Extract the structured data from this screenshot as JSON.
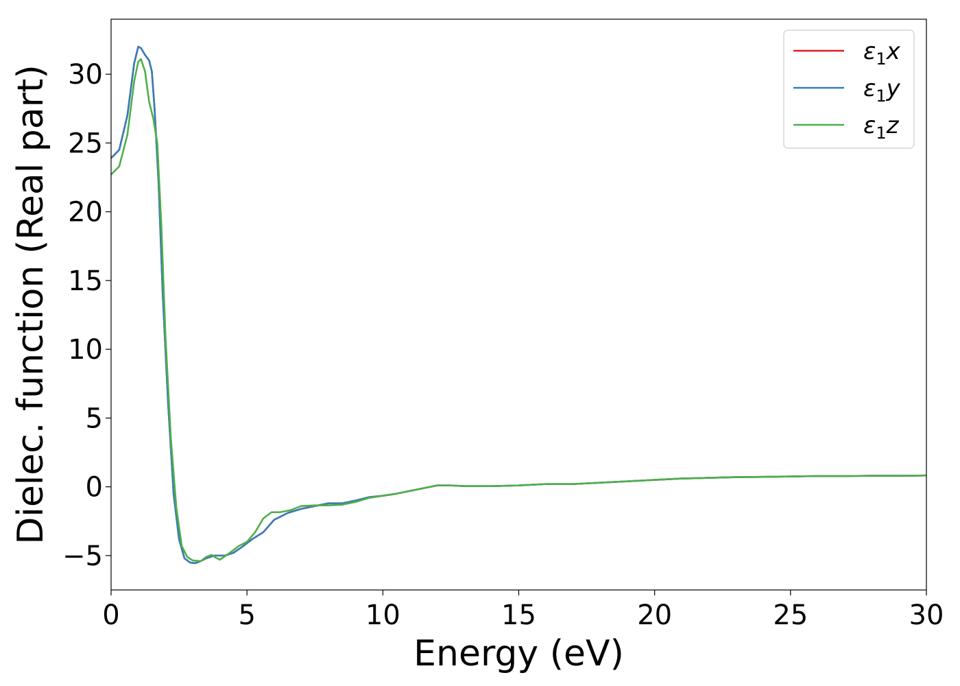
{
  "chart_data": {
    "type": "line",
    "title": "",
    "xlabel": "Energy (eV)",
    "ylabel": "Dielec. function (Real part)",
    "xlim": [
      0,
      30
    ],
    "ylim": [
      -7.5,
      34
    ],
    "xticks": [
      0,
      5,
      10,
      15,
      20,
      25,
      30
    ],
    "yticks": [
      -5,
      0,
      5,
      10,
      15,
      20,
      25,
      30
    ],
    "xtick_labels": [
      "0",
      "5",
      "10",
      "15",
      "20",
      "25",
      "30"
    ],
    "ytick_labels": [
      "−5",
      "0",
      "5",
      "10",
      "15",
      "20",
      "25",
      "30"
    ],
    "grid": false,
    "legend_position": "top-right",
    "series": [
      {
        "name": "ε₁x",
        "legend_main": "ε",
        "legend_sub": "1",
        "legend_tail": "x",
        "color": "#e41a1c",
        "points": [
          [
            0,
            23.9
          ],
          [
            0.3,
            24.5
          ],
          [
            0.6,
            27.0
          ],
          [
            0.85,
            30.8
          ],
          [
            1.0,
            32.0
          ],
          [
            1.1,
            31.9
          ],
          [
            1.25,
            31.4
          ],
          [
            1.4,
            31.0
          ],
          [
            1.5,
            30.2
          ],
          [
            1.6,
            27.5
          ],
          [
            1.75,
            22.0
          ],
          [
            1.9,
            14.0
          ],
          [
            2.1,
            6.0
          ],
          [
            2.3,
            -0.5
          ],
          [
            2.5,
            -3.8
          ],
          [
            2.7,
            -5.2
          ],
          [
            2.9,
            -5.5
          ],
          [
            3.1,
            -5.55
          ],
          [
            3.3,
            -5.4
          ],
          [
            3.5,
            -5.2
          ],
          [
            3.8,
            -5.0
          ],
          [
            4.2,
            -5.0
          ],
          [
            4.5,
            -4.8
          ],
          [
            4.8,
            -4.4
          ],
          [
            5.2,
            -3.8
          ],
          [
            5.6,
            -3.3
          ],
          [
            6.0,
            -2.4
          ],
          [
            6.5,
            -1.9
          ],
          [
            7.0,
            -1.6
          ],
          [
            7.5,
            -1.4
          ],
          [
            8.0,
            -1.2
          ],
          [
            8.5,
            -1.2
          ],
          [
            9.0,
            -1.0
          ],
          [
            9.5,
            -0.75
          ],
          [
            10.0,
            -0.65
          ],
          [
            10.5,
            -0.5
          ],
          [
            11.0,
            -0.3
          ],
          [
            11.5,
            -0.1
          ],
          [
            12.0,
            0.1
          ],
          [
            12.5,
            0.1
          ],
          [
            13.0,
            0.05
          ],
          [
            14.0,
            0.05
          ],
          [
            15.0,
            0.1
          ],
          [
            16.0,
            0.2
          ],
          [
            17.0,
            0.2
          ],
          [
            18.0,
            0.3
          ],
          [
            19.0,
            0.4
          ],
          [
            20.0,
            0.5
          ],
          [
            21.0,
            0.6
          ],
          [
            22.0,
            0.65
          ],
          [
            23.0,
            0.7
          ],
          [
            24.0,
            0.72
          ],
          [
            25.0,
            0.75
          ],
          [
            26.0,
            0.78
          ],
          [
            27.0,
            0.78
          ],
          [
            28.0,
            0.8
          ],
          [
            29.0,
            0.8
          ],
          [
            30.0,
            0.82
          ]
        ]
      },
      {
        "name": "ε₁y",
        "legend_main": "ε",
        "legend_sub": "1",
        "legend_tail": "y",
        "color": "#377eb8",
        "points": [
          [
            0,
            23.9
          ],
          [
            0.3,
            24.5
          ],
          [
            0.6,
            27.0
          ],
          [
            0.85,
            30.8
          ],
          [
            1.0,
            32.0
          ],
          [
            1.1,
            31.9
          ],
          [
            1.25,
            31.4
          ],
          [
            1.4,
            31.0
          ],
          [
            1.5,
            30.2
          ],
          [
            1.6,
            27.5
          ],
          [
            1.75,
            22.0
          ],
          [
            1.9,
            14.0
          ],
          [
            2.1,
            6.0
          ],
          [
            2.3,
            -0.5
          ],
          [
            2.5,
            -3.8
          ],
          [
            2.7,
            -5.2
          ],
          [
            2.9,
            -5.5
          ],
          [
            3.1,
            -5.55
          ],
          [
            3.3,
            -5.4
          ],
          [
            3.5,
            -5.2
          ],
          [
            3.8,
            -5.0
          ],
          [
            4.2,
            -5.0
          ],
          [
            4.5,
            -4.8
          ],
          [
            4.8,
            -4.4
          ],
          [
            5.2,
            -3.8
          ],
          [
            5.6,
            -3.3
          ],
          [
            6.0,
            -2.4
          ],
          [
            6.5,
            -1.9
          ],
          [
            7.0,
            -1.6
          ],
          [
            7.5,
            -1.4
          ],
          [
            8.0,
            -1.2
          ],
          [
            8.5,
            -1.2
          ],
          [
            9.0,
            -1.0
          ],
          [
            9.5,
            -0.75
          ],
          [
            10.0,
            -0.65
          ],
          [
            10.5,
            -0.5
          ],
          [
            11.0,
            -0.3
          ],
          [
            11.5,
            -0.1
          ],
          [
            12.0,
            0.1
          ],
          [
            12.5,
            0.1
          ],
          [
            13.0,
            0.05
          ],
          [
            14.0,
            0.05
          ],
          [
            15.0,
            0.1
          ],
          [
            16.0,
            0.2
          ],
          [
            17.0,
            0.2
          ],
          [
            18.0,
            0.3
          ],
          [
            19.0,
            0.4
          ],
          [
            20.0,
            0.5
          ],
          [
            21.0,
            0.6
          ],
          [
            22.0,
            0.65
          ],
          [
            23.0,
            0.7
          ],
          [
            24.0,
            0.72
          ],
          [
            25.0,
            0.75
          ],
          [
            26.0,
            0.78
          ],
          [
            27.0,
            0.78
          ],
          [
            28.0,
            0.8
          ],
          [
            29.0,
            0.8
          ],
          [
            30.0,
            0.82
          ]
        ]
      },
      {
        "name": "ε₁z",
        "legend_main": "ε",
        "legend_sub": "1",
        "legend_tail": "z",
        "color": "#4daf4a",
        "points": [
          [
            0,
            22.7
          ],
          [
            0.3,
            23.3
          ],
          [
            0.6,
            25.6
          ],
          [
            0.85,
            29.5
          ],
          [
            1.0,
            30.9
          ],
          [
            1.1,
            31.1
          ],
          [
            1.25,
            30.2
          ],
          [
            1.4,
            28.0
          ],
          [
            1.55,
            26.8
          ],
          [
            1.7,
            25.0
          ],
          [
            1.85,
            19.0
          ],
          [
            2.0,
            11.0
          ],
          [
            2.2,
            3.5
          ],
          [
            2.4,
            -1.5
          ],
          [
            2.6,
            -4.3
          ],
          [
            2.8,
            -5.1
          ],
          [
            3.0,
            -5.35
          ],
          [
            3.3,
            -5.4
          ],
          [
            3.5,
            -5.1
          ],
          [
            3.7,
            -4.95
          ],
          [
            3.85,
            -5.15
          ],
          [
            4.0,
            -5.3
          ],
          [
            4.3,
            -4.9
          ],
          [
            4.7,
            -4.3
          ],
          [
            5.0,
            -4.0
          ],
          [
            5.3,
            -3.3
          ],
          [
            5.6,
            -2.3
          ],
          [
            5.9,
            -1.85
          ],
          [
            6.2,
            -1.85
          ],
          [
            6.6,
            -1.7
          ],
          [
            7.0,
            -1.4
          ],
          [
            7.5,
            -1.35
          ],
          [
            8.0,
            -1.35
          ],
          [
            8.5,
            -1.3
          ],
          [
            9.0,
            -1.1
          ],
          [
            9.5,
            -0.8
          ],
          [
            10.0,
            -0.65
          ],
          [
            10.5,
            -0.5
          ],
          [
            11.0,
            -0.3
          ],
          [
            11.5,
            -0.1
          ],
          [
            12.0,
            0.1
          ],
          [
            12.5,
            0.1
          ],
          [
            13.0,
            0.05
          ],
          [
            14.0,
            0.05
          ],
          [
            15.0,
            0.1
          ],
          [
            16.0,
            0.2
          ],
          [
            17.0,
            0.2
          ],
          [
            18.0,
            0.3
          ],
          [
            19.0,
            0.4
          ],
          [
            20.0,
            0.5
          ],
          [
            21.0,
            0.6
          ],
          [
            22.0,
            0.65
          ],
          [
            23.0,
            0.7
          ],
          [
            24.0,
            0.72
          ],
          [
            25.0,
            0.75
          ],
          [
            26.0,
            0.78
          ],
          [
            27.0,
            0.78
          ],
          [
            28.0,
            0.8
          ],
          [
            29.0,
            0.8
          ],
          [
            30.0,
            0.82
          ]
        ]
      }
    ]
  }
}
